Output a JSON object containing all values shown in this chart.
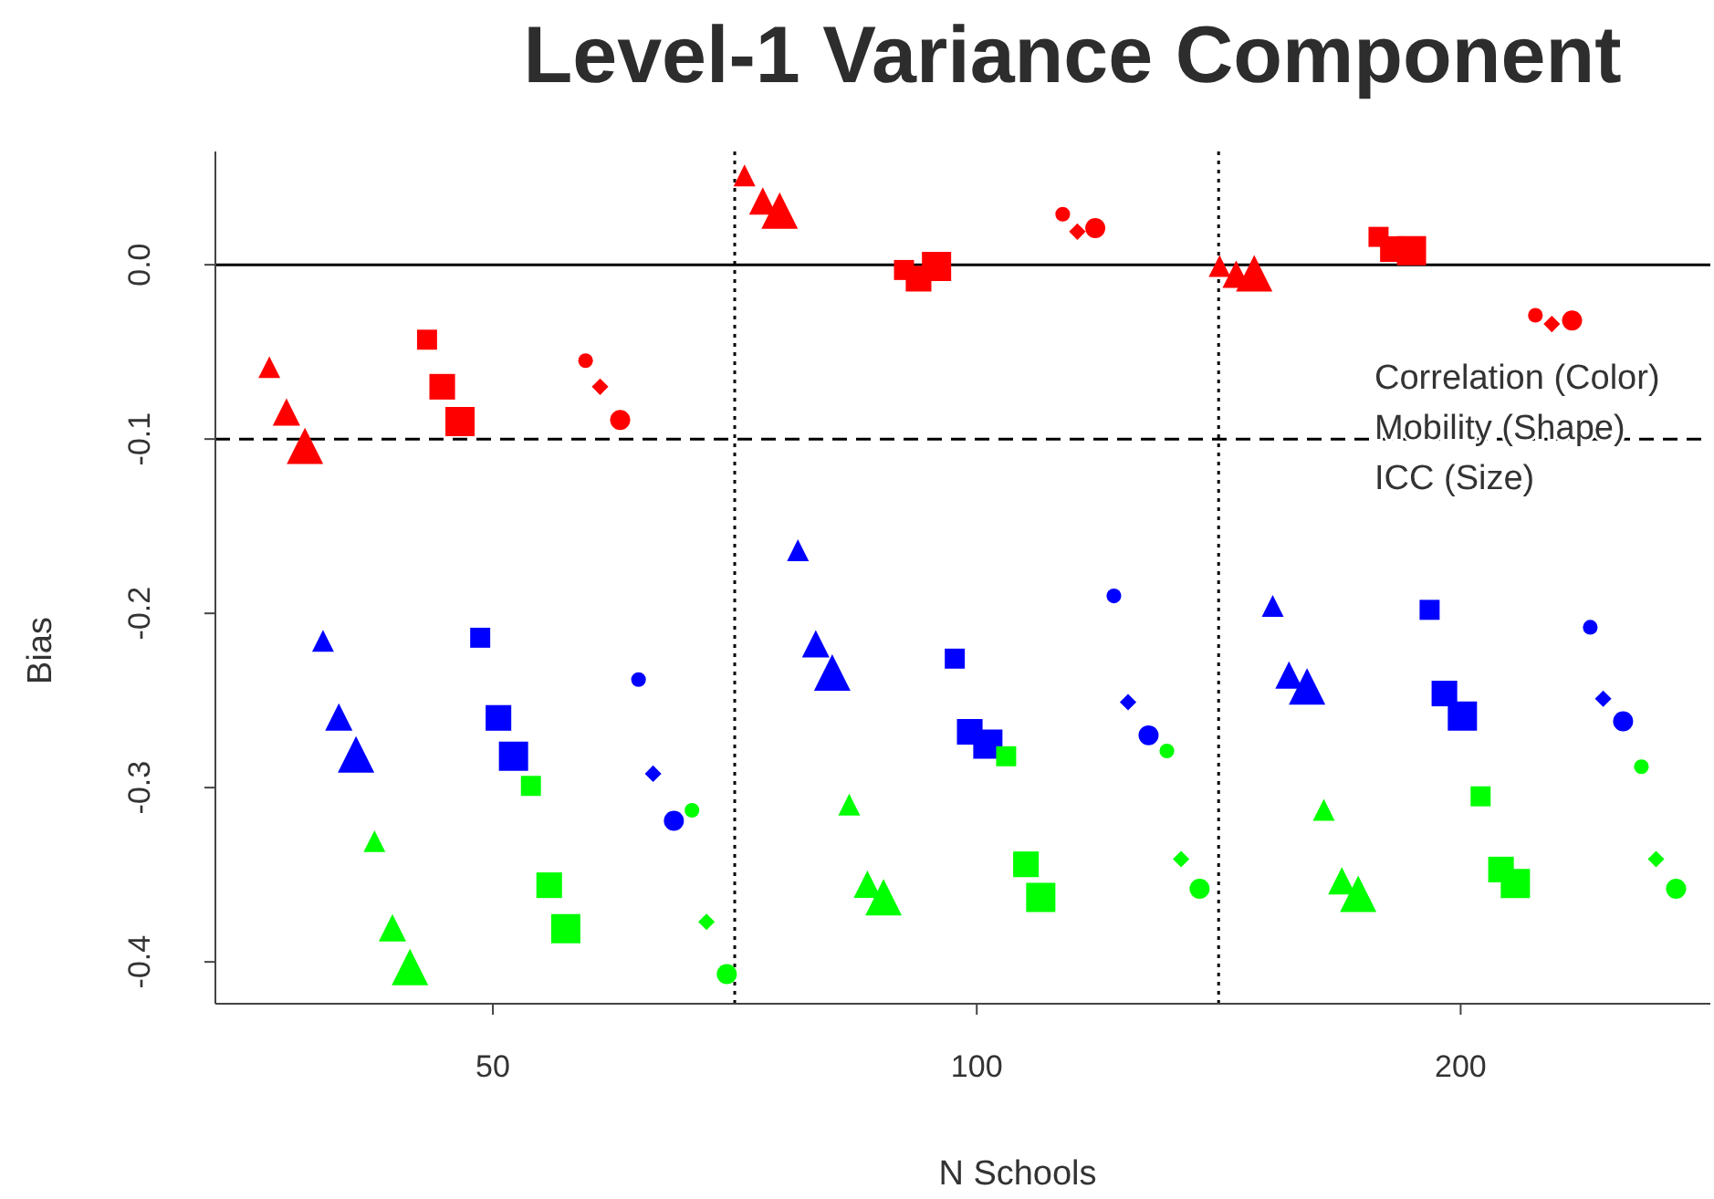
{
  "chart_data": {
    "type": "scatter",
    "title": "Level-1 Variance Component",
    "xlabel": "N Schools",
    "ylabel": "Bias",
    "log": "x",
    "xlim": [
      33.6,
      286
    ],
    "xticks": [
      50,
      100,
      200
    ],
    "ylim": [
      -0.424,
      0.065
    ],
    "yticks": [
      {
        "value": -0.4,
        "label": "-0.4"
      },
      {
        "value": -0.3,
        "label": "-0.3"
      },
      {
        "value": -0.2,
        "label": "-0.2"
      },
      {
        "value": -0.1,
        "label": "-0.1"
      },
      {
        "value": 0,
        "label": "0.0"
      }
    ],
    "grid": false,
    "ref_lines": [
      {
        "axis": "y",
        "value": 0,
        "line_style": "solid",
        "color": "#000000"
      },
      {
        "axis": "y",
        "value": -0.1,
        "line_style": "dashed",
        "color": "#000000"
      },
      {
        "axis": "x",
        "value": 70.7,
        "line_style": "dotted",
        "color": "#000000"
      },
      {
        "axis": "x",
        "value": 141.4,
        "line_style": "dotted",
        "color": "#000000"
      }
    ],
    "annotations": [
      "Correlation (Color)",
      "Mobility (Shape)",
      "ICC (Size)"
    ],
    "series": [
      {
        "color": "#ff0000",
        "marker": "triangle",
        "sizes": [
          0.28,
          0.28,
          0.28
        ],
        "x": [
          36.3,
          71.7,
          141.6
        ],
        "values": [
          -0.06,
          0.05,
          -0.002
        ]
      },
      {
        "color": "#ff0000",
        "marker": "triangle",
        "sizes": [
          0.44,
          0.44,
          0.44
        ],
        "x": [
          37.2,
          73.6,
          145.0
        ],
        "values": [
          -0.086,
          0.035,
          -0.007
        ]
      },
      {
        "color": "#ff0000",
        "marker": "triangle",
        "sizes": [
          0.78,
          0.78,
          0.78
        ],
        "x": [
          38.2,
          75.4,
          148.8
        ],
        "values": [
          -0.106,
          0.029,
          -0.007
        ]
      },
      {
        "color": "#ff0000",
        "marker": "square",
        "sizes": [
          0.47,
          0.47,
          0.47
        ],
        "x": [
          45.5,
          90.1,
          177.8
        ],
        "values": [
          -0.043,
          -0.003,
          0.016
        ]
      },
      {
        "color": "#ff0000",
        "marker": "square",
        "sizes": [
          0.77,
          0.77,
          0.77
        ],
        "x": [
          46.5,
          92.0,
          181.5
        ],
        "values": [
          -0.07,
          -0.008,
          0.009
        ]
      },
      {
        "color": "#ff0000",
        "marker": "square",
        "sizes": [
          1,
          1,
          1
        ],
        "x": [
          47.7,
          94.4,
          186.4
        ],
        "values": [
          -0.09,
          -0.001,
          0.008
        ]
      },
      {
        "color": "#ff0000",
        "marker": "circle",
        "sizes": [
          0.2,
          0.2,
          0.2
        ],
        "x": [
          57.1,
          113.1,
          222.6
        ],
        "values": [
          -0.055,
          0.029,
          -0.029
        ]
      },
      {
        "color": "#ff0000",
        "marker": "diamond",
        "sizes": [
          0.16,
          0.16,
          0.16
        ],
        "x": [
          58.3,
          115.5,
          227.9
        ],
        "values": [
          -0.07,
          0.019,
          -0.034
        ]
      },
      {
        "color": "#ff0000",
        "marker": "circle",
        "sizes": [
          0.37,
          0.37,
          0.37
        ],
        "x": [
          60.0,
          118.5,
          234.6
        ],
        "values": [
          -0.089,
          0.021,
          -0.032
        ]
      },
      {
        "color": "#0000ff",
        "marker": "triangle",
        "sizes": [
          0.28,
          0.28,
          0.28
        ],
        "x": [
          39.2,
          77.4,
          152.8
        ],
        "values": [
          -0.217,
          -0.165,
          -0.197
        ]
      },
      {
        "color": "#0000ff",
        "marker": "triangle",
        "sizes": [
          0.44,
          0.44,
          0.44
        ],
        "x": [
          40.1,
          79.4,
          156.4
        ],
        "values": [
          -0.261,
          -0.219,
          -0.237
        ]
      },
      {
        "color": "#0000ff",
        "marker": "triangle",
        "sizes": [
          0.78,
          0.78,
          0.78
        ],
        "x": [
          41.1,
          81.3,
          160.5
        ],
        "values": [
          -0.283,
          -0.236,
          -0.244
        ]
      },
      {
        "color": "#0000ff",
        "marker": "square",
        "sizes": [
          0.47,
          0.47,
          0.47
        ],
        "x": [
          49.1,
          96.9,
          191.3
        ],
        "values": [
          -0.214,
          -0.226,
          -0.198
        ]
      },
      {
        "color": "#0000ff",
        "marker": "square",
        "sizes": [
          0.77,
          0.77,
          0.77
        ],
        "x": [
          50.4,
          99.0,
          195.4
        ],
        "values": [
          -0.26,
          -0.268,
          -0.246
        ]
      },
      {
        "color": "#0000ff",
        "marker": "square",
        "sizes": [
          1,
          1,
          1
        ],
        "x": [
          51.5,
          101.6,
          200.5
        ],
        "values": [
          -0.282,
          -0.275,
          -0.259
        ]
      },
      {
        "color": "#0000ff",
        "marker": "circle",
        "sizes": [
          0.2,
          0.2,
          0.2
        ],
        "x": [
          61.6,
          121.7,
          240.8
        ],
        "values": [
          -0.238,
          -0.19,
          -0.208
        ]
      },
      {
        "color": "#0000ff",
        "marker": "diamond",
        "sizes": [
          0.16,
          0.16,
          0.16
        ],
        "x": [
          62.9,
          124.2,
          245.3
        ],
        "values": [
          -0.292,
          -0.251,
          -0.249
        ]
      },
      {
        "color": "#0000ff",
        "marker": "circle",
        "sizes": [
          0.37,
          0.37,
          0.37
        ],
        "x": [
          64.8,
          127.9,
          252.4
        ],
        "values": [
          -0.319,
          -0.27,
          -0.262
        ]
      },
      {
        "color": "#00ff00",
        "marker": "triangle",
        "sizes": [
          0.28,
          0.28,
          0.28
        ],
        "x": [
          42.2,
          83.3,
          164.4
        ],
        "values": [
          -0.332,
          -0.311,
          -0.314
        ]
      },
      {
        "color": "#00ff00",
        "marker": "triangle",
        "sizes": [
          0.44,
          0.44,
          0.44
        ],
        "x": [
          43.3,
          85.5,
          168.7
        ],
        "values": [
          -0.382,
          -0.357,
          -0.355
        ]
      },
      {
        "color": "#00ff00",
        "marker": "triangle",
        "sizes": [
          0.78,
          0.78,
          0.78
        ],
        "x": [
          44.4,
          87.5,
          172.7
        ],
        "values": [
          -0.405,
          -0.365,
          -0.363
        ]
      },
      {
        "color": "#00ff00",
        "marker": "square",
        "sizes": [
          0.47,
          0.47,
          0.47
        ],
        "x": [
          52.8,
          104.3,
          205.8
        ],
        "values": [
          -0.299,
          -0.282,
          -0.305
        ]
      },
      {
        "color": "#00ff00",
        "marker": "square",
        "sizes": [
          0.77,
          0.77,
          0.77
        ],
        "x": [
          54.2,
          107.3,
          211.9
        ],
        "values": [
          -0.356,
          -0.344,
          -0.347
        ]
      },
      {
        "color": "#00ff00",
        "marker": "square",
        "sizes": [
          1,
          1,
          1
        ],
        "x": [
          55.5,
          109.6,
          216.3
        ],
        "values": [
          -0.381,
          -0.363,
          -0.355
        ]
      },
      {
        "color": "#00ff00",
        "marker": "circle",
        "sizes": [
          0.2,
          0.2,
          0.2
        ],
        "x": [
          66.5,
          131.3,
          259.1
        ],
        "values": [
          -0.313,
          -0.279,
          -0.288
        ]
      },
      {
        "color": "#00ff00",
        "marker": "diamond",
        "sizes": [
          0.16,
          0.16,
          0.16
        ],
        "x": [
          67.9,
          134.0,
          264.6
        ],
        "values": [
          -0.377,
          -0.341,
          -0.341
        ]
      },
      {
        "color": "#00ff00",
        "marker": "circle",
        "sizes": [
          0.37,
          0.37,
          0.37
        ],
        "x": [
          69.9,
          137.6,
          272.3
        ],
        "values": [
          -0.407,
          -0.358,
          -0.358
        ]
      }
    ]
  }
}
